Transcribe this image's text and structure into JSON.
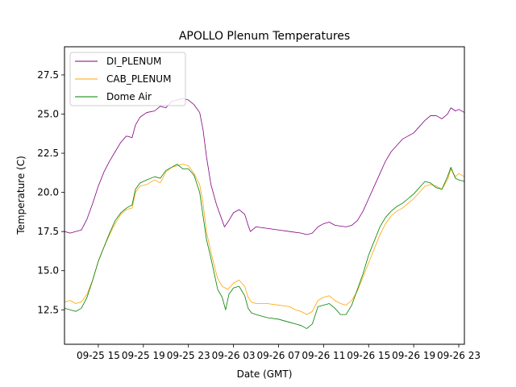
{
  "chart_data": {
    "type": "line",
    "title": "APOLLO Plenum Temperatures",
    "xlabel": "Date (GMT)",
    "ylabel": "Temperature (C)",
    "xlim": [
      12.0,
      47.5
    ],
    "ylim": [
      10.3,
      29.3
    ],
    "grid": false,
    "legend_position": "top-left",
    "x_unit": "hours since 2018-09-25 00:00 GMT",
    "xticks": [
      {
        "x": 15,
        "label": "09-25 15"
      },
      {
        "x": 19,
        "label": "09-25 19"
      },
      {
        "x": 23,
        "label": "09-25 23"
      },
      {
        "x": 27,
        "label": "09-26 03"
      },
      {
        "x": 31,
        "label": "09-26 07"
      },
      {
        "x": 35,
        "label": "09-26 11"
      },
      {
        "x": 39,
        "label": "09-26 15"
      },
      {
        "x": 43,
        "label": "09-26 19"
      },
      {
        "x": 47,
        "label": "09-26 23"
      }
    ],
    "yticks": [
      {
        "y": 12.5,
        "label": "12.5"
      },
      {
        "y": 15.0,
        "label": "15.0"
      },
      {
        "y": 17.5,
        "label": "17.5"
      },
      {
        "y": 20.0,
        "label": "20.0"
      },
      {
        "y": 22.5,
        "label": "22.5"
      },
      {
        "y": 25.0,
        "label": "25.0"
      },
      {
        "y": 27.5,
        "label": "27.5"
      }
    ],
    "series": [
      {
        "name": "DI_PLENUM",
        "color": "#800080",
        "points": [
          [
            12.0,
            17.5
          ],
          [
            12.5,
            17.4
          ],
          [
            13.0,
            17.5
          ],
          [
            13.5,
            17.6
          ],
          [
            14.0,
            18.3
          ],
          [
            14.5,
            19.3
          ],
          [
            15.0,
            20.4
          ],
          [
            15.5,
            21.3
          ],
          [
            16.0,
            22.0
          ],
          [
            16.5,
            22.6
          ],
          [
            17.0,
            23.2
          ],
          [
            17.5,
            23.6
          ],
          [
            18.0,
            23.5
          ],
          [
            18.3,
            24.3
          ],
          [
            18.7,
            24.8
          ],
          [
            19.3,
            25.1
          ],
          [
            20.0,
            25.2
          ],
          [
            20.5,
            25.5
          ],
          [
            21.0,
            25.4
          ],
          [
            21.5,
            25.8
          ],
          [
            22.0,
            25.9
          ],
          [
            22.5,
            26.0
          ],
          [
            23.0,
            25.9
          ],
          [
            23.5,
            25.6
          ],
          [
            24.0,
            25.1
          ],
          [
            24.3,
            24.0
          ],
          [
            24.6,
            22.3
          ],
          [
            25.0,
            20.5
          ],
          [
            25.5,
            19.2
          ],
          [
            26.0,
            18.2
          ],
          [
            26.2,
            17.8
          ],
          [
            26.5,
            18.1
          ],
          [
            27.0,
            18.7
          ],
          [
            27.5,
            18.9
          ],
          [
            28.0,
            18.6
          ],
          [
            28.3,
            17.9
          ],
          [
            28.5,
            17.5
          ],
          [
            29.0,
            17.8
          ],
          [
            30.0,
            17.7
          ],
          [
            31.0,
            17.6
          ],
          [
            32.0,
            17.5
          ],
          [
            33.0,
            17.4
          ],
          [
            33.5,
            17.3
          ],
          [
            34.0,
            17.4
          ],
          [
            34.5,
            17.8
          ],
          [
            35.0,
            18.0
          ],
          [
            35.5,
            18.1
          ],
          [
            36.0,
            17.9
          ],
          [
            37.0,
            17.8
          ],
          [
            37.5,
            17.9
          ],
          [
            38.0,
            18.2
          ],
          [
            38.5,
            18.8
          ],
          [
            39.0,
            19.6
          ],
          [
            39.5,
            20.4
          ],
          [
            40.0,
            21.2
          ],
          [
            40.5,
            22.0
          ],
          [
            41.0,
            22.6
          ],
          [
            41.5,
            23.0
          ],
          [
            42.0,
            23.4
          ],
          [
            42.5,
            23.6
          ],
          [
            43.0,
            23.8
          ],
          [
            43.5,
            24.2
          ],
          [
            44.0,
            24.6
          ],
          [
            44.5,
            24.9
          ],
          [
            45.0,
            24.9
          ],
          [
            45.5,
            24.7
          ],
          [
            46.0,
            25.0
          ],
          [
            46.3,
            25.4
          ],
          [
            46.7,
            25.2
          ],
          [
            47.0,
            25.3
          ],
          [
            47.5,
            25.1
          ]
        ]
      },
      {
        "name": "CAB_PLENUM",
        "color": "#FFA500",
        "points": [
          [
            12.0,
            13.0
          ],
          [
            12.5,
            13.1
          ],
          [
            13.0,
            12.9
          ],
          [
            13.5,
            13.0
          ],
          [
            14.0,
            13.5
          ],
          [
            14.5,
            14.4
          ],
          [
            15.0,
            15.6
          ],
          [
            15.5,
            16.5
          ],
          [
            16.0,
            17.3
          ],
          [
            16.5,
            18.0
          ],
          [
            17.0,
            18.6
          ],
          [
            17.5,
            18.9
          ],
          [
            18.0,
            19.0
          ],
          [
            18.3,
            20.0
          ],
          [
            18.7,
            20.4
          ],
          [
            19.3,
            20.5
          ],
          [
            20.0,
            20.8
          ],
          [
            20.5,
            20.6
          ],
          [
            21.0,
            21.3
          ],
          [
            21.5,
            21.6
          ],
          [
            22.0,
            21.7
          ],
          [
            22.5,
            21.8
          ],
          [
            23.0,
            21.7
          ],
          [
            23.5,
            21.2
          ],
          [
            24.0,
            20.5
          ],
          [
            24.3,
            19.3
          ],
          [
            24.6,
            17.5
          ],
          [
            25.0,
            16.2
          ],
          [
            25.3,
            15.3
          ],
          [
            25.6,
            14.5
          ],
          [
            26.0,
            14.0
          ],
          [
            26.5,
            13.8
          ],
          [
            27.0,
            14.2
          ],
          [
            27.5,
            14.4
          ],
          [
            28.0,
            14.0
          ],
          [
            28.3,
            13.3
          ],
          [
            28.6,
            13.0
          ],
          [
            29.0,
            12.9
          ],
          [
            30.0,
            12.9
          ],
          [
            31.0,
            12.8
          ],
          [
            32.0,
            12.7
          ],
          [
            32.5,
            12.5
          ],
          [
            33.0,
            12.4
          ],
          [
            33.5,
            12.2
          ],
          [
            34.0,
            12.4
          ],
          [
            34.5,
            13.1
          ],
          [
            35.0,
            13.3
          ],
          [
            35.5,
            13.4
          ],
          [
            36.0,
            13.1
          ],
          [
            36.5,
            12.9
          ],
          [
            37.0,
            12.8
          ],
          [
            37.5,
            13.1
          ],
          [
            38.0,
            13.7
          ],
          [
            38.5,
            14.6
          ],
          [
            39.0,
            15.5
          ],
          [
            39.5,
            16.4
          ],
          [
            40.0,
            17.3
          ],
          [
            40.5,
            18.0
          ],
          [
            41.0,
            18.5
          ],
          [
            41.5,
            18.8
          ],
          [
            42.0,
            19.0
          ],
          [
            42.5,
            19.3
          ],
          [
            43.0,
            19.6
          ],
          [
            43.5,
            20.0
          ],
          [
            44.0,
            20.4
          ],
          [
            44.5,
            20.5
          ],
          [
            45.0,
            20.4
          ],
          [
            45.5,
            20.2
          ],
          [
            46.0,
            20.8
          ],
          [
            46.3,
            21.5
          ],
          [
            46.7,
            21.0
          ],
          [
            47.0,
            21.2
          ],
          [
            47.5,
            21.0
          ]
        ]
      },
      {
        "name": "Dome Air",
        "color": "#008000",
        "points": [
          [
            12.0,
            12.6
          ],
          [
            12.5,
            12.5
          ],
          [
            13.0,
            12.4
          ],
          [
            13.5,
            12.6
          ],
          [
            14.0,
            13.3
          ],
          [
            14.5,
            14.4
          ],
          [
            15.0,
            15.6
          ],
          [
            15.5,
            16.5
          ],
          [
            16.0,
            17.4
          ],
          [
            16.5,
            18.2
          ],
          [
            17.0,
            18.7
          ],
          [
            17.5,
            19.0
          ],
          [
            18.0,
            19.2
          ],
          [
            18.3,
            20.2
          ],
          [
            18.7,
            20.6
          ],
          [
            19.3,
            20.8
          ],
          [
            20.0,
            21.0
          ],
          [
            20.5,
            20.9
          ],
          [
            21.0,
            21.4
          ],
          [
            21.5,
            21.6
          ],
          [
            22.0,
            21.8
          ],
          [
            22.5,
            21.5
          ],
          [
            23.0,
            21.5
          ],
          [
            23.5,
            21.1
          ],
          [
            24.0,
            20.0
          ],
          [
            24.3,
            18.5
          ],
          [
            24.6,
            17.0
          ],
          [
            25.0,
            15.8
          ],
          [
            25.3,
            14.8
          ],
          [
            25.6,
            13.8
          ],
          [
            26.0,
            13.3
          ],
          [
            26.3,
            12.5
          ],
          [
            26.6,
            13.5
          ],
          [
            27.0,
            13.9
          ],
          [
            27.5,
            14.0
          ],
          [
            28.0,
            13.4
          ],
          [
            28.3,
            12.6
          ],
          [
            28.6,
            12.3
          ],
          [
            29.0,
            12.2
          ],
          [
            30.0,
            12.0
          ],
          [
            31.0,
            11.9
          ],
          [
            32.0,
            11.7
          ],
          [
            32.5,
            11.6
          ],
          [
            33.0,
            11.5
          ],
          [
            33.5,
            11.3
          ],
          [
            34.0,
            11.6
          ],
          [
            34.5,
            12.7
          ],
          [
            35.0,
            12.8
          ],
          [
            35.5,
            12.9
          ],
          [
            36.0,
            12.6
          ],
          [
            36.5,
            12.2
          ],
          [
            37.0,
            12.2
          ],
          [
            37.5,
            12.8
          ],
          [
            38.0,
            13.8
          ],
          [
            38.5,
            14.8
          ],
          [
            39.0,
            16.0
          ],
          [
            39.5,
            16.9
          ],
          [
            40.0,
            17.8
          ],
          [
            40.5,
            18.4
          ],
          [
            41.0,
            18.8
          ],
          [
            41.5,
            19.1
          ],
          [
            42.0,
            19.3
          ],
          [
            42.5,
            19.6
          ],
          [
            43.0,
            19.9
          ],
          [
            43.5,
            20.3
          ],
          [
            44.0,
            20.7
          ],
          [
            44.5,
            20.6
          ],
          [
            45.0,
            20.3
          ],
          [
            45.5,
            20.2
          ],
          [
            46.0,
            21.0
          ],
          [
            46.3,
            21.6
          ],
          [
            46.7,
            20.9
          ],
          [
            47.0,
            20.8
          ],
          [
            47.5,
            20.7
          ]
        ]
      }
    ]
  }
}
